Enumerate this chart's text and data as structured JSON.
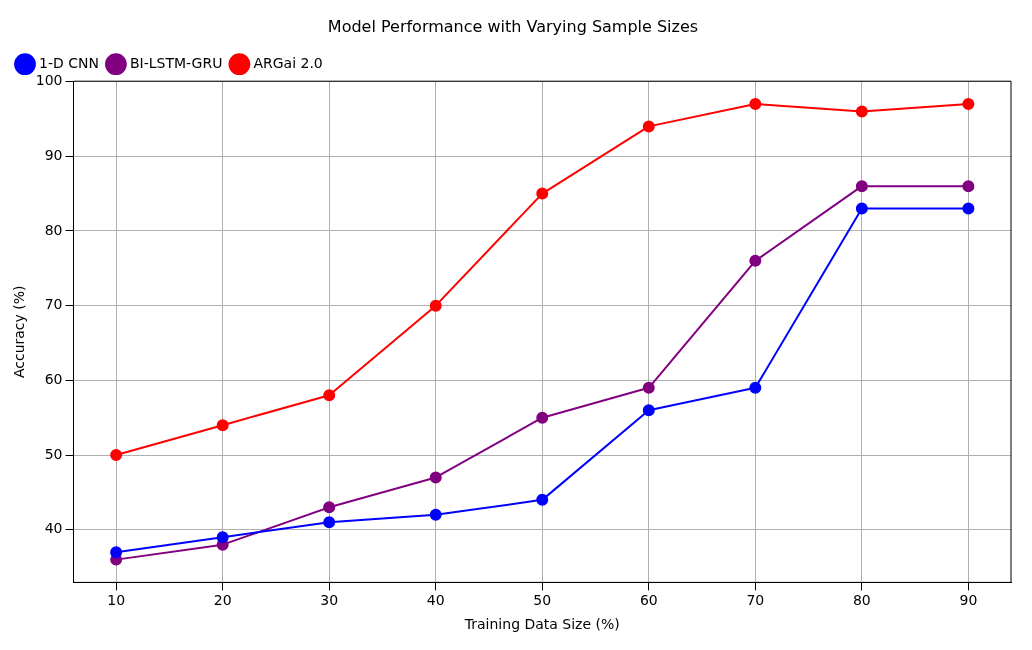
{
  "chart_data": {
    "type": "line",
    "title": "Model Performance with Varying Sample Sizes",
    "xlabel": "Training Data Size (%)",
    "ylabel": "Accuracy (%)",
    "x": [
      10,
      20,
      30,
      40,
      50,
      60,
      70,
      80,
      90
    ],
    "series": [
      {
        "name": "1-D CNN",
        "color": "#0000ff",
        "values": [
          37,
          39,
          41,
          42,
          44,
          56,
          59,
          83,
          83
        ]
      },
      {
        "name": "BI-LSTM-GRU",
        "color": "#800080",
        "values": [
          36,
          38,
          43,
          47,
          55,
          59,
          76,
          86,
          86
        ]
      },
      {
        "name": "ARGai 2.0",
        "color": "#ff0000",
        "values": [
          50,
          54,
          58,
          70,
          85,
          94,
          97,
          96,
          97
        ]
      }
    ],
    "xlim": [
      6,
      94
    ],
    "xticks": [
      10,
      20,
      30,
      40,
      50,
      60,
      70,
      80,
      90
    ],
    "ylim": [
      32.95,
      100.05
    ],
    "yticks": [
      40,
      50,
      60,
      70,
      80,
      90,
      100
    ],
    "grid": true,
    "legend": "top left",
    "marker": "circle",
    "line_style": "solid"
  }
}
